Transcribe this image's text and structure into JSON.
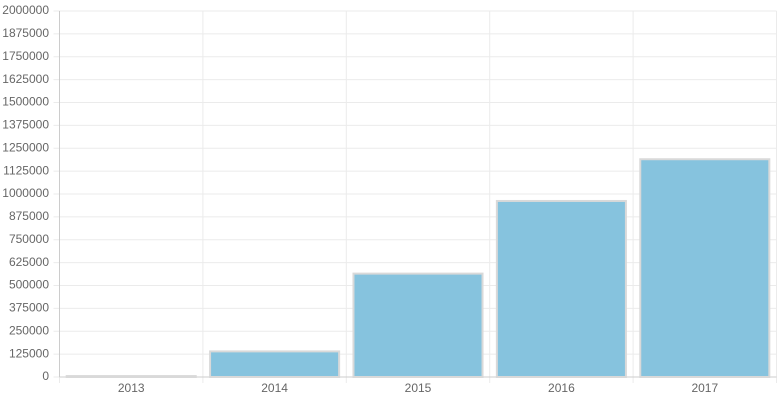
{
  "chart_data": {
    "type": "bar",
    "categories": [
      "2013",
      "2014",
      "2015",
      "2016",
      "2017"
    ],
    "values": [
      5000,
      140000,
      565000,
      962000,
      1190000
    ],
    "color": "#86c3de",
    "ylim": [
      0,
      2000000
    ],
    "yticks": [
      0,
      125000,
      250000,
      375000,
      500000,
      625000,
      750000,
      875000,
      1000000,
      1125000,
      1250000,
      1375000,
      1500000,
      1625000,
      1750000,
      1875000,
      2000000
    ],
    "grid": true
  }
}
